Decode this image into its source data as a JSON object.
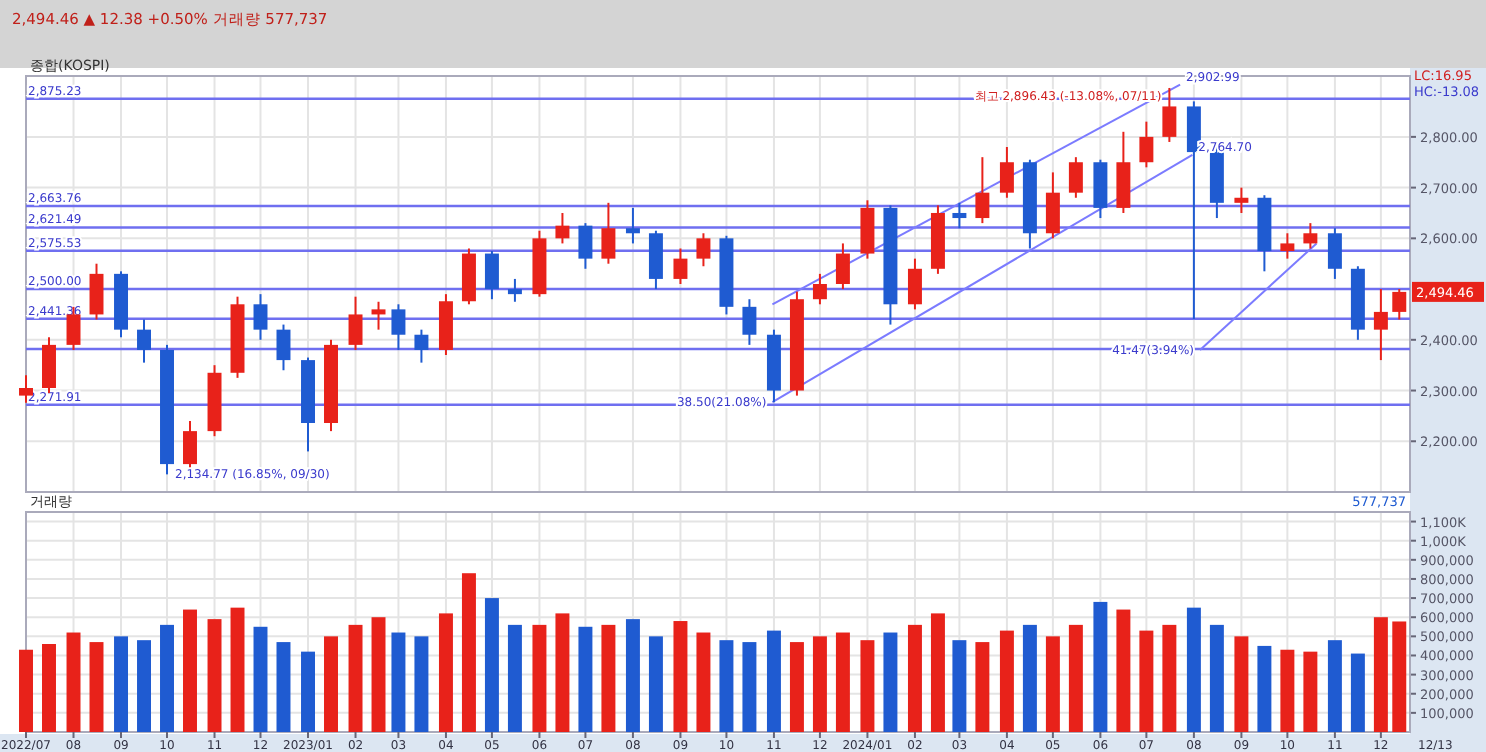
{
  "chart_data": [
    {
      "type": "candlestick",
      "title": "종합(KOSPI)",
      "subtitle": "2,494.46 ▲ 12.38 +0.50% 거래량 577,737",
      "x": [
        "2022-07-01",
        "2022-07-16",
        "2022-08-01",
        "2022-08-16",
        "2022-09-01",
        "2022-09-16",
        "2022-10-01",
        "2022-10-16",
        "2022-11-01",
        "2022-11-16",
        "2022-12-01",
        "2022-12-16",
        "2023-01-01",
        "2023-01-16",
        "2023-02-01",
        "2023-02-16",
        "2023-03-01",
        "2023-03-16",
        "2023-04-01",
        "2023-04-16",
        "2023-05-01",
        "2023-05-16",
        "2023-06-01",
        "2023-06-16",
        "2023-07-01",
        "2023-07-16",
        "2023-08-01",
        "2023-08-16",
        "2023-09-01",
        "2023-09-16",
        "2023-10-01",
        "2023-10-16",
        "2023-11-01",
        "2023-11-16",
        "2023-12-01",
        "2023-12-16",
        "2024-01-01",
        "2024-01-16",
        "2024-02-01",
        "2024-02-16",
        "2024-03-01",
        "2024-03-16",
        "2024-04-01",
        "2024-04-16",
        "2024-05-01",
        "2024-05-16",
        "2024-06-01",
        "2024-06-16",
        "2024-07-01",
        "2024-07-16",
        "2024-08-01",
        "2024-08-16",
        "2024-09-01",
        "2024-09-16",
        "2024-10-01",
        "2024-10-16",
        "2024-11-01",
        "2024-11-16",
        "2024-12-01",
        "2024-12-13"
      ],
      "ohlc": [
        [
          2290,
          2330,
          2276,
          2305
        ],
        [
          2305,
          2405,
          2295,
          2390
        ],
        [
          2390,
          2465,
          2380,
          2450
        ],
        [
          2450,
          2550,
          2440,
          2530
        ],
        [
          2530,
          2535,
          2405,
          2420
        ],
        [
          2420,
          2440,
          2355,
          2380
        ],
        [
          2380,
          2390,
          2134.77,
          2155
        ],
        [
          2155,
          2240,
          2140,
          2220
        ],
        [
          2220,
          2350,
          2210,
          2335
        ],
        [
          2335,
          2485,
          2325,
          2470
        ],
        [
          2470,
          2490,
          2400,
          2420
        ],
        [
          2420,
          2430,
          2340,
          2360
        ],
        [
          2360,
          2365,
          2180,
          2236
        ],
        [
          2236,
          2400,
          2220,
          2390
        ],
        [
          2390,
          2485,
          2380,
          2450
        ],
        [
          2450,
          2475,
          2420,
          2460
        ],
        [
          2460,
          2470,
          2380,
          2410
        ],
        [
          2410,
          2420,
          2355,
          2380
        ],
        [
          2380,
          2490,
          2370,
          2476
        ],
        [
          2476,
          2580,
          2470,
          2570
        ],
        [
          2570,
          2575,
          2480,
          2500
        ],
        [
          2500,
          2520,
          2475,
          2490
        ],
        [
          2490,
          2615,
          2485,
          2600
        ],
        [
          2600,
          2650,
          2590,
          2625
        ],
        [
          2625,
          2630,
          2540,
          2560
        ],
        [
          2560,
          2670,
          2550,
          2620
        ],
        [
          2620,
          2660,
          2590,
          2610
        ],
        [
          2610,
          2615,
          2500,
          2520
        ],
        [
          2520,
          2580,
          2510,
          2560
        ],
        [
          2560,
          2610,
          2545,
          2600
        ],
        [
          2600,
          2605,
          2450,
          2465
        ],
        [
          2465,
          2480,
          2390,
          2410
        ],
        [
          2410,
          2420,
          2277,
          2300
        ],
        [
          2300,
          2495,
          2290,
          2480
        ],
        [
          2480,
          2530,
          2470,
          2510
        ],
        [
          2510,
          2590,
          2500,
          2570
        ],
        [
          2570,
          2675,
          2560,
          2660
        ],
        [
          2660,
          2665,
          2430,
          2470
        ],
        [
          2470,
          2560,
          2460,
          2540
        ],
        [
          2540,
          2665,
          2530,
          2650
        ],
        [
          2650,
          2670,
          2620,
          2640
        ],
        [
          2640,
          2760,
          2630,
          2690
        ],
        [
          2690,
          2780,
          2680,
          2750
        ],
        [
          2750,
          2755,
          2580,
          2610
        ],
        [
          2610,
          2730,
          2600,
          2690
        ],
        [
          2690,
          2760,
          2680,
          2750
        ],
        [
          2750,
          2755,
          2640,
          2660
        ],
        [
          2660,
          2810,
          2650,
          2750
        ],
        [
          2750,
          2830,
          2740,
          2800
        ],
        [
          2800,
          2896.43,
          2790,
          2860
        ],
        [
          2860,
          2870,
          2441,
          2770
        ],
        [
          2770,
          2780,
          2640,
          2670
        ],
        [
          2670,
          2700,
          2650,
          2680
        ],
        [
          2680,
          2685,
          2535,
          2575
        ],
        [
          2575,
          2610,
          2560,
          2590
        ],
        [
          2590,
          2630,
          2580,
          2610
        ],
        [
          2610,
          2620,
          2520,
          2540
        ],
        [
          2540,
          2545,
          2400,
          2420
        ],
        [
          2420,
          2500,
          2360,
          2455
        ],
        [
          2455,
          2500,
          2440,
          2494.46
        ]
      ],
      "series": [
        {
          "type": "line",
          "color": "#7b7bff",
          "x": [
            "2023-10-31",
            "2024-07-23"
          ],
          "values": [
            2470,
            2902.99
          ]
        },
        {
          "type": "line",
          "color": "#7b7bff",
          "x": [
            "2023-10-31",
            "2024-07-31"
          ],
          "values": [
            2277,
            2764.7
          ]
        },
        {
          "type": "line",
          "color": "#7b7bff",
          "x": [
            "2024-08-05",
            "2024-10-20"
          ],
          "values": [
            2380,
            2590
          ]
        }
      ],
      "xlim": [
        "2022-07-01",
        "2024-12-20"
      ],
      "xticks": [
        {
          "value": "2022-07-01",
          "label": null
        },
        {
          "value": "2022-08-01",
          "label": null
        },
        {
          "value": "2022-09-01",
          "label": null
        },
        {
          "value": "2022-10-01",
          "label": null
        },
        {
          "value": "2022-11-01",
          "label": null
        },
        {
          "value": "2022-12-01",
          "label": null
        },
        {
          "value": "2023-01-01",
          "label": null
        },
        {
          "value": "2023-02-01",
          "label": null
        },
        {
          "value": "2023-03-01",
          "label": null
        },
        {
          "value": "2023-04-01",
          "label": null
        },
        {
          "value": "2023-05-01",
          "label": null
        },
        {
          "value": "2023-06-01",
          "label": null
        },
        {
          "value": "2023-07-01",
          "label": null
        },
        {
          "value": "2023-08-01",
          "label": null
        },
        {
          "value": "2023-09-01",
          "label": null
        },
        {
          "value": "2023-10-01",
          "label": null
        },
        {
          "value": "2023-11-01",
          "label": null
        },
        {
          "value": "2023-12-01",
          "label": null
        },
        {
          "value": "2024-01-01",
          "label": null
        },
        {
          "value": "2024-02-01",
          "label": null
        },
        {
          "value": "2024-03-01",
          "label": null
        },
        {
          "value": "2024-04-01",
          "label": null
        },
        {
          "value": "2024-05-01",
          "label": null
        },
        {
          "value": "2024-06-01",
          "label": null
        },
        {
          "value": "2024-07-01",
          "label": null
        },
        {
          "value": "2024-08-01",
          "label": null
        },
        {
          "value": "2024-09-01",
          "label": null
        },
        {
          "value": "2024-10-01",
          "label": null
        },
        {
          "value": "2024-11-01",
          "label": null
        },
        {
          "value": "2024-12-01",
          "label": null
        }
      ],
      "ylim": [
        2100,
        2920
      ],
      "yticks": [
        {
          "value": 2200,
          "label": "2,200.00"
        },
        {
          "value": 2300,
          "label": "2,300.00"
        },
        {
          "value": 2400,
          "label": "2,400.00"
        },
        {
          "value": 2600,
          "label": "2,600.00"
        },
        {
          "value": 2700,
          "label": "2,700.00"
        },
        {
          "value": 2800,
          "label": "2,800.00"
        }
      ],
      "tick_labels": "y",
      "grid": true,
      "ref_lines": [
        {
          "axis": "y",
          "value": 2875.23,
          "label": "2,875.23"
        },
        {
          "axis": "y",
          "value": 2663.76,
          "label": "2,663.76"
        },
        {
          "axis": "y",
          "value": 2621.49,
          "label": "2,621.49"
        },
        {
          "axis": "y",
          "value": 2575.53,
          "label": "2,575.53"
        },
        {
          "axis": "y",
          "value": 2500.0,
          "label": "2,500.00"
        },
        {
          "axis": "y",
          "value": 2441.36,
          "label": "2,441.36"
        },
        {
          "axis": "y",
          "value": 2382,
          "label": null
        },
        {
          "axis": "y",
          "value": 2271.91,
          "label": "2,271.91"
        }
      ],
      "annotations": [
        {
          "text": "최고 2,896.43 (-13.08%, 07/11)",
          "x": "2024-07-16",
          "y": 2896.43
        },
        {
          "text": "2,134.77 (16.85%, 09/30)",
          "x": "2022-10-01",
          "y": 2134.77
        },
        {
          "text": "2,902.99",
          "x": "2024-07-23",
          "y": 2902.99
        },
        {
          "text": "2,764.70",
          "x": "2024-07-31",
          "y": 2764.7
        },
        {
          "text": "41.47(3.94%)",
          "x": "2024-08-05",
          "y": 2380
        },
        {
          "text": "38.50(21.08%)",
          "x": "2023-10-31",
          "y": 2277
        },
        {
          "text": "2,494.46",
          "x": "2024-12-13",
          "y": 2494.46
        },
        "LC:16.95",
        "HC:-13.08"
      ]
    },
    {
      "type": "bar",
      "title": "거래량",
      "x": [
        "2022-07-01",
        "2022-07-16",
        "2022-08-01",
        "2022-08-16",
        "2022-09-01",
        "2022-09-16",
        "2022-10-01",
        "2022-10-16",
        "2022-11-01",
        "2022-11-16",
        "2022-12-01",
        "2022-12-16",
        "2023-01-01",
        "2023-01-16",
        "2023-02-01",
        "2023-02-16",
        "2023-03-01",
        "2023-03-16",
        "2023-04-01",
        "2023-04-16",
        "2023-05-01",
        "2023-05-16",
        "2023-06-01",
        "2023-06-16",
        "2023-07-01",
        "2023-07-16",
        "2023-08-01",
        "2023-08-16",
        "2023-09-01",
        "2023-09-16",
        "2023-10-01",
        "2023-10-16",
        "2023-11-01",
        "2023-11-16",
        "2023-12-01",
        "2023-12-16",
        "2024-01-01",
        "2024-01-16",
        "2024-02-01",
        "2024-02-16",
        "2024-03-01",
        "2024-03-16",
        "2024-04-01",
        "2024-04-16",
        "2024-05-01",
        "2024-05-16",
        "2024-06-01",
        "2024-06-16",
        "2024-07-01",
        "2024-07-16",
        "2024-08-01",
        "2024-08-16",
        "2024-09-01",
        "2024-09-16",
        "2024-10-01",
        "2024-10-16",
        "2024-11-01",
        "2024-11-16",
        "2024-12-01",
        "2024-12-13"
      ],
      "values": [
        430000,
        460000,
        520000,
        470000,
        500000,
        480000,
        560000,
        640000,
        590000,
        650000,
        550000,
        470000,
        420000,
        500000,
        560000,
        600000,
        520000,
        500000,
        620000,
        830000,
        700000,
        560000,
        560000,
        620000,
        550000,
        560000,
        590000,
        500000,
        580000,
        520000,
        480000,
        470000,
        530000,
        470000,
        500000,
        520000,
        480000,
        520000,
        560000,
        620000,
        480000,
        470000,
        530000,
        560000,
        500000,
        560000,
        680000,
        640000,
        530000,
        560000,
        650000,
        560000,
        500000,
        450000,
        430000,
        420000,
        480000,
        410000,
        600000,
        577737
      ],
      "colors": [
        "#e8221a",
        "#e8221a",
        "#e8221a",
        "#e8221a",
        "#1f5bd1",
        "#1f5bd1",
        "#1f5bd1",
        "#e8221a",
        "#e8221a",
        "#e8221a",
        "#1f5bd1",
        "#1f5bd1",
        "#1f5bd1",
        "#e8221a",
        "#e8221a",
        "#e8221a",
        "#1f5bd1",
        "#1f5bd1",
        "#e8221a",
        "#e8221a",
        "#1f5bd1",
        "#1f5bd1",
        "#e8221a",
        "#e8221a",
        "#1f5bd1",
        "#e8221a",
        "#1f5bd1",
        "#1f5bd1",
        "#e8221a",
        "#e8221a",
        "#1f5bd1",
        "#1f5bd1",
        "#1f5bd1",
        "#e8221a",
        "#e8221a",
        "#e8221a",
        "#e8221a",
        "#1f5bd1",
        "#e8221a",
        "#e8221a",
        "#1f5bd1",
        "#e8221a",
        "#e8221a",
        "#1f5bd1",
        "#e8221a",
        "#e8221a",
        "#1f5bd1",
        "#e8221a",
        "#e8221a",
        "#e8221a",
        "#1f5bd1",
        "#1f5bd1",
        "#e8221a",
        "#1f5bd1",
        "#e8221a",
        "#e8221a",
        "#1f5bd1",
        "#1f5bd1",
        "#e8221a",
        "#e8221a"
      ],
      "xlim": [
        "2022-07-01",
        "2024-12-20"
      ],
      "xticks": [
        {
          "value": "2022-07-01",
          "label": "2022/07"
        },
        {
          "value": "2022-08-01",
          "label": "08"
        },
        {
          "value": "2022-09-01",
          "label": "09"
        },
        {
          "value": "2022-10-01",
          "label": "10"
        },
        {
          "value": "2022-11-01",
          "label": "11"
        },
        {
          "value": "2022-12-01",
          "label": "12"
        },
        {
          "value": "2023-01-01",
          "label": "2023/01"
        },
        {
          "value": "2023-02-01",
          "label": "02"
        },
        {
          "value": "2023-03-01",
          "label": "03"
        },
        {
          "value": "2023-04-01",
          "label": "04"
        },
        {
          "value": "2023-05-01",
          "label": "05"
        },
        {
          "value": "2023-06-01",
          "label": "06"
        },
        {
          "value": "2023-07-01",
          "label": "07"
        },
        {
          "value": "2023-08-01",
          "label": "08"
        },
        {
          "value": "2023-09-01",
          "label": "09"
        },
        {
          "value": "2023-10-01",
          "label": "10"
        },
        {
          "value": "2023-11-01",
          "label": "11"
        },
        {
          "value": "2023-12-01",
          "label": "12"
        },
        {
          "value": "2024-01-01",
          "label": "2024/01"
        },
        {
          "value": "2024-02-01",
          "label": "02"
        },
        {
          "value": "2024-03-01",
          "label": "03"
        },
        {
          "value": "2024-04-01",
          "label": "04"
        },
        {
          "value": "2024-05-01",
          "label": "05"
        },
        {
          "value": "2024-06-01",
          "label": "06"
        },
        {
          "value": "2024-07-01",
          "label": "07"
        },
        {
          "value": "2024-08-01",
          "label": "08"
        },
        {
          "value": "2024-09-01",
          "label": "09"
        },
        {
          "value": "2024-10-01",
          "label": "10"
        },
        {
          "value": "2024-11-01",
          "label": "11"
        },
        {
          "value": "2024-12-01",
          "label": "12"
        }
      ],
      "ylim": [
        0,
        1150000
      ],
      "yticks": [
        {
          "value": 100000,
          "label": "100,000"
        },
        {
          "value": 200000,
          "label": "200,000"
        },
        {
          "value": 300000,
          "label": "300,000"
        },
        {
          "value": 400000,
          "label": "400,000"
        },
        {
          "value": 500000,
          "label": "500,000"
        },
        {
          "value": 600000,
          "label": "600,000"
        },
        {
          "value": 700000,
          "label": "700,000"
        },
        {
          "value": 800000,
          "label": "800,000"
        },
        {
          "value": 900000,
          "label": "900,000"
        },
        {
          "value": 1000000,
          "label": "1,000K"
        },
        {
          "value": 1100000,
          "label": "1,100K"
        }
      ],
      "grid": true,
      "annotations": [
        "577,737",
        "12/13"
      ]
    }
  ]
}
